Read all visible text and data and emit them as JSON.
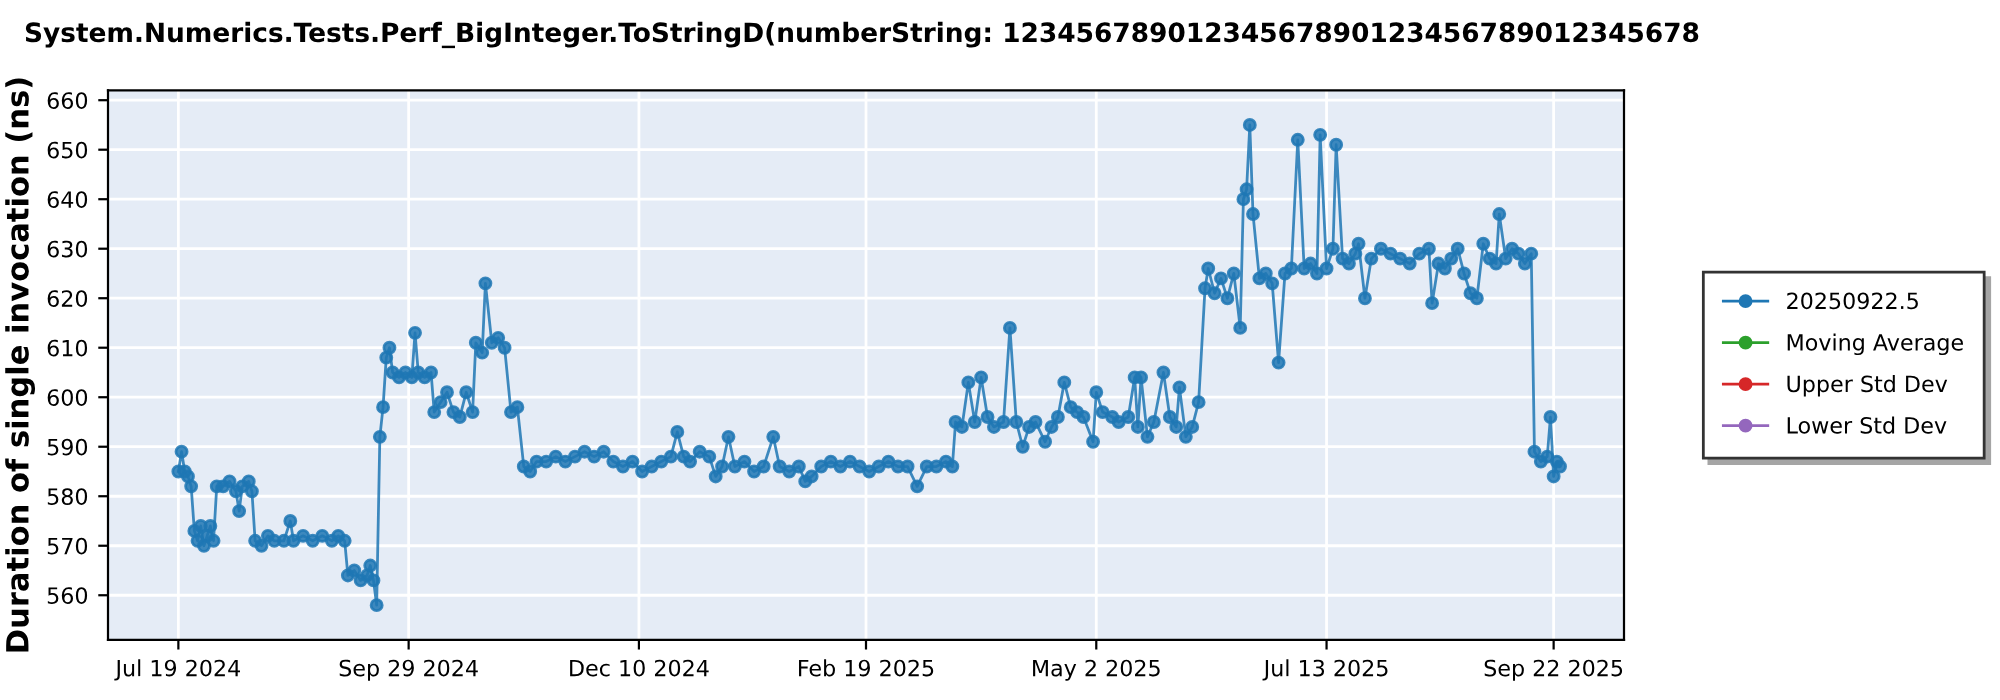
{
  "chart_data": {
    "type": "line",
    "title": "System.Numerics.Tests.Perf_BigInteger.ToStringD(numberString: 12345678901234567890123456789012345678",
    "ylabel": "Duration of single invocation (ns)",
    "xlim": [
      "2024-06-27",
      "2025-10-14"
    ],
    "ylim": [
      551,
      662
    ],
    "xticks": [
      {
        "value": "2024-07-19",
        "label": "Jul 19 2024"
      },
      {
        "value": "2024-09-29",
        "label": "Sep 29 2024"
      },
      {
        "value": "2024-12-10",
        "label": "Dec 10 2024"
      },
      {
        "value": "2025-02-19",
        "label": "Feb 19 2025"
      },
      {
        "value": "2025-05-02",
        "label": "May 2 2025"
      },
      {
        "value": "2025-07-13",
        "label": "Jul 13 2025"
      },
      {
        "value": "2025-09-22",
        "label": "Sep 22 2025"
      }
    ],
    "yticks": [
      560,
      570,
      580,
      590,
      600,
      610,
      620,
      630,
      640,
      650,
      660
    ],
    "grid": true,
    "legend": "right",
    "marker": "circle",
    "line_style": "solid",
    "series": [
      {
        "name": "20250922.5",
        "color": "#1f77b4",
        "x": [
          "2024-07-19",
          "2024-07-20",
          "2024-07-21",
          "2024-07-22",
          "2024-07-23",
          "2024-07-24",
          "2024-07-25",
          "2024-07-26",
          "2024-07-27",
          "2024-07-28",
          "2024-07-29",
          "2024-07-30",
          "2024-07-31",
          "2024-08-02",
          "2024-08-04",
          "2024-08-06",
          "2024-08-07",
          "2024-08-08",
          "2024-08-10",
          "2024-08-11",
          "2024-08-12",
          "2024-08-14",
          "2024-08-16",
          "2024-08-18",
          "2024-08-21",
          "2024-08-23",
          "2024-08-24",
          "2024-08-27",
          "2024-08-30",
          "2024-09-02",
          "2024-09-05",
          "2024-09-07",
          "2024-09-09",
          "2024-09-10",
          "2024-09-12",
          "2024-09-14",
          "2024-09-16",
          "2024-09-17",
          "2024-09-18",
          "2024-09-19",
          "2024-09-20",
          "2024-09-21",
          "2024-09-22",
          "2024-09-23",
          "2024-09-24",
          "2024-09-26",
          "2024-09-28",
          "2024-09-30",
          "2024-10-01",
          "2024-10-02",
          "2024-10-04",
          "2024-10-06",
          "2024-10-07",
          "2024-10-09",
          "2024-10-11",
          "2024-10-13",
          "2024-10-15",
          "2024-10-17",
          "2024-10-19",
          "2024-10-20",
          "2024-10-22",
          "2024-10-23",
          "2024-10-25",
          "2024-10-27",
          "2024-10-29",
          "2024-10-31",
          "2024-11-02",
          "2024-11-04",
          "2024-11-06",
          "2024-11-08",
          "2024-11-11",
          "2024-11-14",
          "2024-11-17",
          "2024-11-20",
          "2024-11-23",
          "2024-11-26",
          "2024-11-29",
          "2024-12-02",
          "2024-12-05",
          "2024-12-08",
          "2024-12-11",
          "2024-12-14",
          "2024-12-17",
          "2024-12-20",
          "2024-12-22",
          "2024-12-24",
          "2024-12-26",
          "2024-12-29",
          "2025-01-01",
          "2025-01-03",
          "2025-01-05",
          "2025-01-07",
          "2025-01-09",
          "2025-01-12",
          "2025-01-15",
          "2025-01-18",
          "2025-01-21",
          "2025-01-23",
          "2025-01-26",
          "2025-01-29",
          "2025-01-31",
          "2025-02-02",
          "2025-02-05",
          "2025-02-08",
          "2025-02-11",
          "2025-02-14",
          "2025-02-17",
          "2025-02-20",
          "2025-02-23",
          "2025-02-26",
          "2025-03-01",
          "2025-03-04",
          "2025-03-07",
          "2025-03-10",
          "2025-03-13",
          "2025-03-16",
          "2025-03-18",
          "2025-03-19",
          "2025-03-21",
          "2025-03-23",
          "2025-03-25",
          "2025-03-27",
          "2025-03-29",
          "2025-03-31",
          "2025-04-03",
          "2025-04-05",
          "2025-04-07",
          "2025-04-09",
          "2025-04-11",
          "2025-04-13",
          "2025-04-16",
          "2025-04-18",
          "2025-04-20",
          "2025-04-22",
          "2025-04-24",
          "2025-04-26",
          "2025-04-28",
          "2025-05-01",
          "2025-05-02",
          "2025-05-04",
          "2025-05-07",
          "2025-05-09",
          "2025-05-12",
          "2025-05-14",
          "2025-05-15",
          "2025-05-16",
          "2025-05-18",
          "2025-05-20",
          "2025-05-23",
          "2025-05-25",
          "2025-05-27",
          "2025-05-28",
          "2025-05-30",
          "2025-06-01",
          "2025-06-03",
          "2025-06-05",
          "2025-06-06",
          "2025-06-08",
          "2025-06-10",
          "2025-06-12",
          "2025-06-14",
          "2025-06-16",
          "2025-06-17",
          "2025-06-18",
          "2025-06-19",
          "2025-06-20",
          "2025-06-22",
          "2025-06-24",
          "2025-06-26",
          "2025-06-28",
          "2025-06-30",
          "2025-07-02",
          "2025-07-04",
          "2025-07-06",
          "2025-07-08",
          "2025-07-10",
          "2025-07-11",
          "2025-07-13",
          "2025-07-15",
          "2025-07-16",
          "2025-07-18",
          "2025-07-20",
          "2025-07-22",
          "2025-07-23",
          "2025-07-25",
          "2025-07-27",
          "2025-07-30",
          "2025-08-02",
          "2025-08-05",
          "2025-08-08",
          "2025-08-11",
          "2025-08-14",
          "2025-08-15",
          "2025-08-17",
          "2025-08-19",
          "2025-08-21",
          "2025-08-23",
          "2025-08-25",
          "2025-08-27",
          "2025-08-29",
          "2025-08-31",
          "2025-09-02",
          "2025-09-04",
          "2025-09-05",
          "2025-09-07",
          "2025-09-09",
          "2025-09-11",
          "2025-09-13",
          "2025-09-15",
          "2025-09-16",
          "2025-09-18",
          "2025-09-20",
          "2025-09-21",
          "2025-09-22",
          "2025-09-23",
          "2025-09-24"
        ],
        "values": [
          585,
          589,
          585,
          584,
          582,
          573,
          571,
          574,
          570,
          572,
          574,
          571,
          582,
          582,
          583,
          581,
          577,
          582,
          583,
          581,
          571,
          570,
          572,
          571,
          571,
          575,
          571,
          572,
          571,
          572,
          571,
          572,
          571,
          564,
          565,
          563,
          564,
          566,
          563,
          558,
          592,
          598,
          608,
          610,
          605,
          604,
          605,
          604,
          613,
          605,
          604,
          605,
          597,
          599,
          601,
          597,
          596,
          601,
          597,
          611,
          609,
          623,
          611,
          612,
          610,
          597,
          598,
          586,
          585,
          587,
          587,
          588,
          587,
          588,
          589,
          588,
          589,
          587,
          586,
          587,
          585,
          586,
          587,
          588,
          593,
          588,
          587,
          589,
          588,
          584,
          586,
          592,
          586,
          587,
          585,
          586,
          592,
          586,
          585,
          586,
          583,
          584,
          586,
          587,
          586,
          587,
          586,
          585,
          586,
          587,
          586,
          586,
          582,
          586,
          586,
          587,
          586,
          595,
          594,
          603,
          595,
          604,
          596,
          594,
          595,
          614,
          595,
          590,
          594,
          595,
          591,
          594,
          596,
          603,
          598,
          597,
          596,
          591,
          601,
          597,
          596,
          595,
          596,
          604,
          594,
          604,
          592,
          595,
          605,
          596,
          594,
          602,
          592,
          594,
          599,
          622,
          626,
          621,
          624,
          620,
          625,
          614,
          640,
          642,
          655,
          637,
          624,
          625,
          623,
          607,
          625,
          626,
          652,
          626,
          627,
          625,
          653,
          626,
          630,
          651,
          628,
          627,
          629,
          631,
          620,
          628,
          630,
          629,
          628,
          627,
          629,
          630,
          619,
          627,
          626,
          628,
          630,
          625,
          621,
          620,
          631,
          628,
          627,
          637,
          628,
          630,
          629,
          627,
          629,
          589,
          587,
          588,
          596,
          584,
          587,
          586
        ]
      },
      {
        "name": "Moving Average",
        "color": "#2ca02c"
      },
      {
        "name": "Upper Std Dev",
        "color": "#d62728"
      },
      {
        "name": "Lower Std Dev",
        "color": "#9467bd"
      }
    ]
  }
}
